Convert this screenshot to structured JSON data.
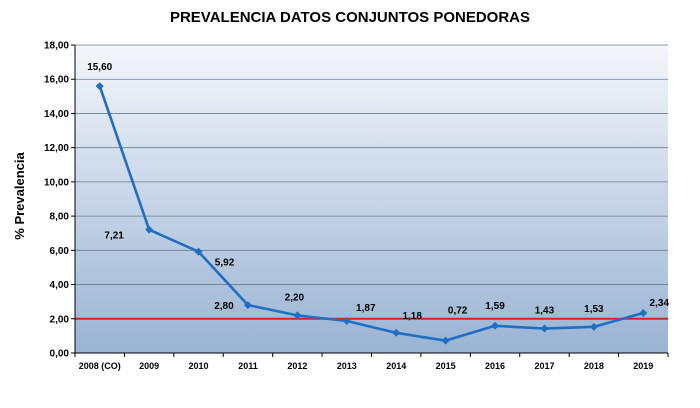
{
  "chart_data": {
    "type": "line",
    "title": "PREVALENCIA  DATOS CONJUNTOS PONEDORAS",
    "xlabel": "",
    "ylabel": "% Prevalencia",
    "ylim": [
      0,
      18
    ],
    "ytick_step": 2,
    "yticks": [
      "0,00",
      "2,00",
      "4,00",
      "6,00",
      "8,00",
      "10,00",
      "12,00",
      "14,00",
      "16,00",
      "18,00"
    ],
    "categories": [
      "2008 (CO)",
      "2009",
      "2010",
      "2011",
      "2012",
      "2013",
      "2014",
      "2015",
      "2016",
      "2017",
      "2018",
      "2019"
    ],
    "series": [
      {
        "name": "Prevalencia",
        "color": "#1f6fc5",
        "values": [
          15.6,
          7.21,
          5.92,
          2.8,
          2.2,
          1.87,
          1.18,
          0.72,
          1.59,
          1.43,
          1.53,
          2.34
        ],
        "labels": [
          "15,60",
          "7,21",
          "5,92",
          "2,80",
          "2,20",
          "1,87",
          "1,18",
          "0,72",
          "1,59",
          "1,43",
          "1,53",
          "2,34"
        ]
      }
    ],
    "reference_line": {
      "value": 2.0,
      "color": "#e02020"
    },
    "grid": true,
    "legend": "none",
    "plot_gradient": [
      "#f4f7fb",
      "#9ab3d3"
    ]
  }
}
